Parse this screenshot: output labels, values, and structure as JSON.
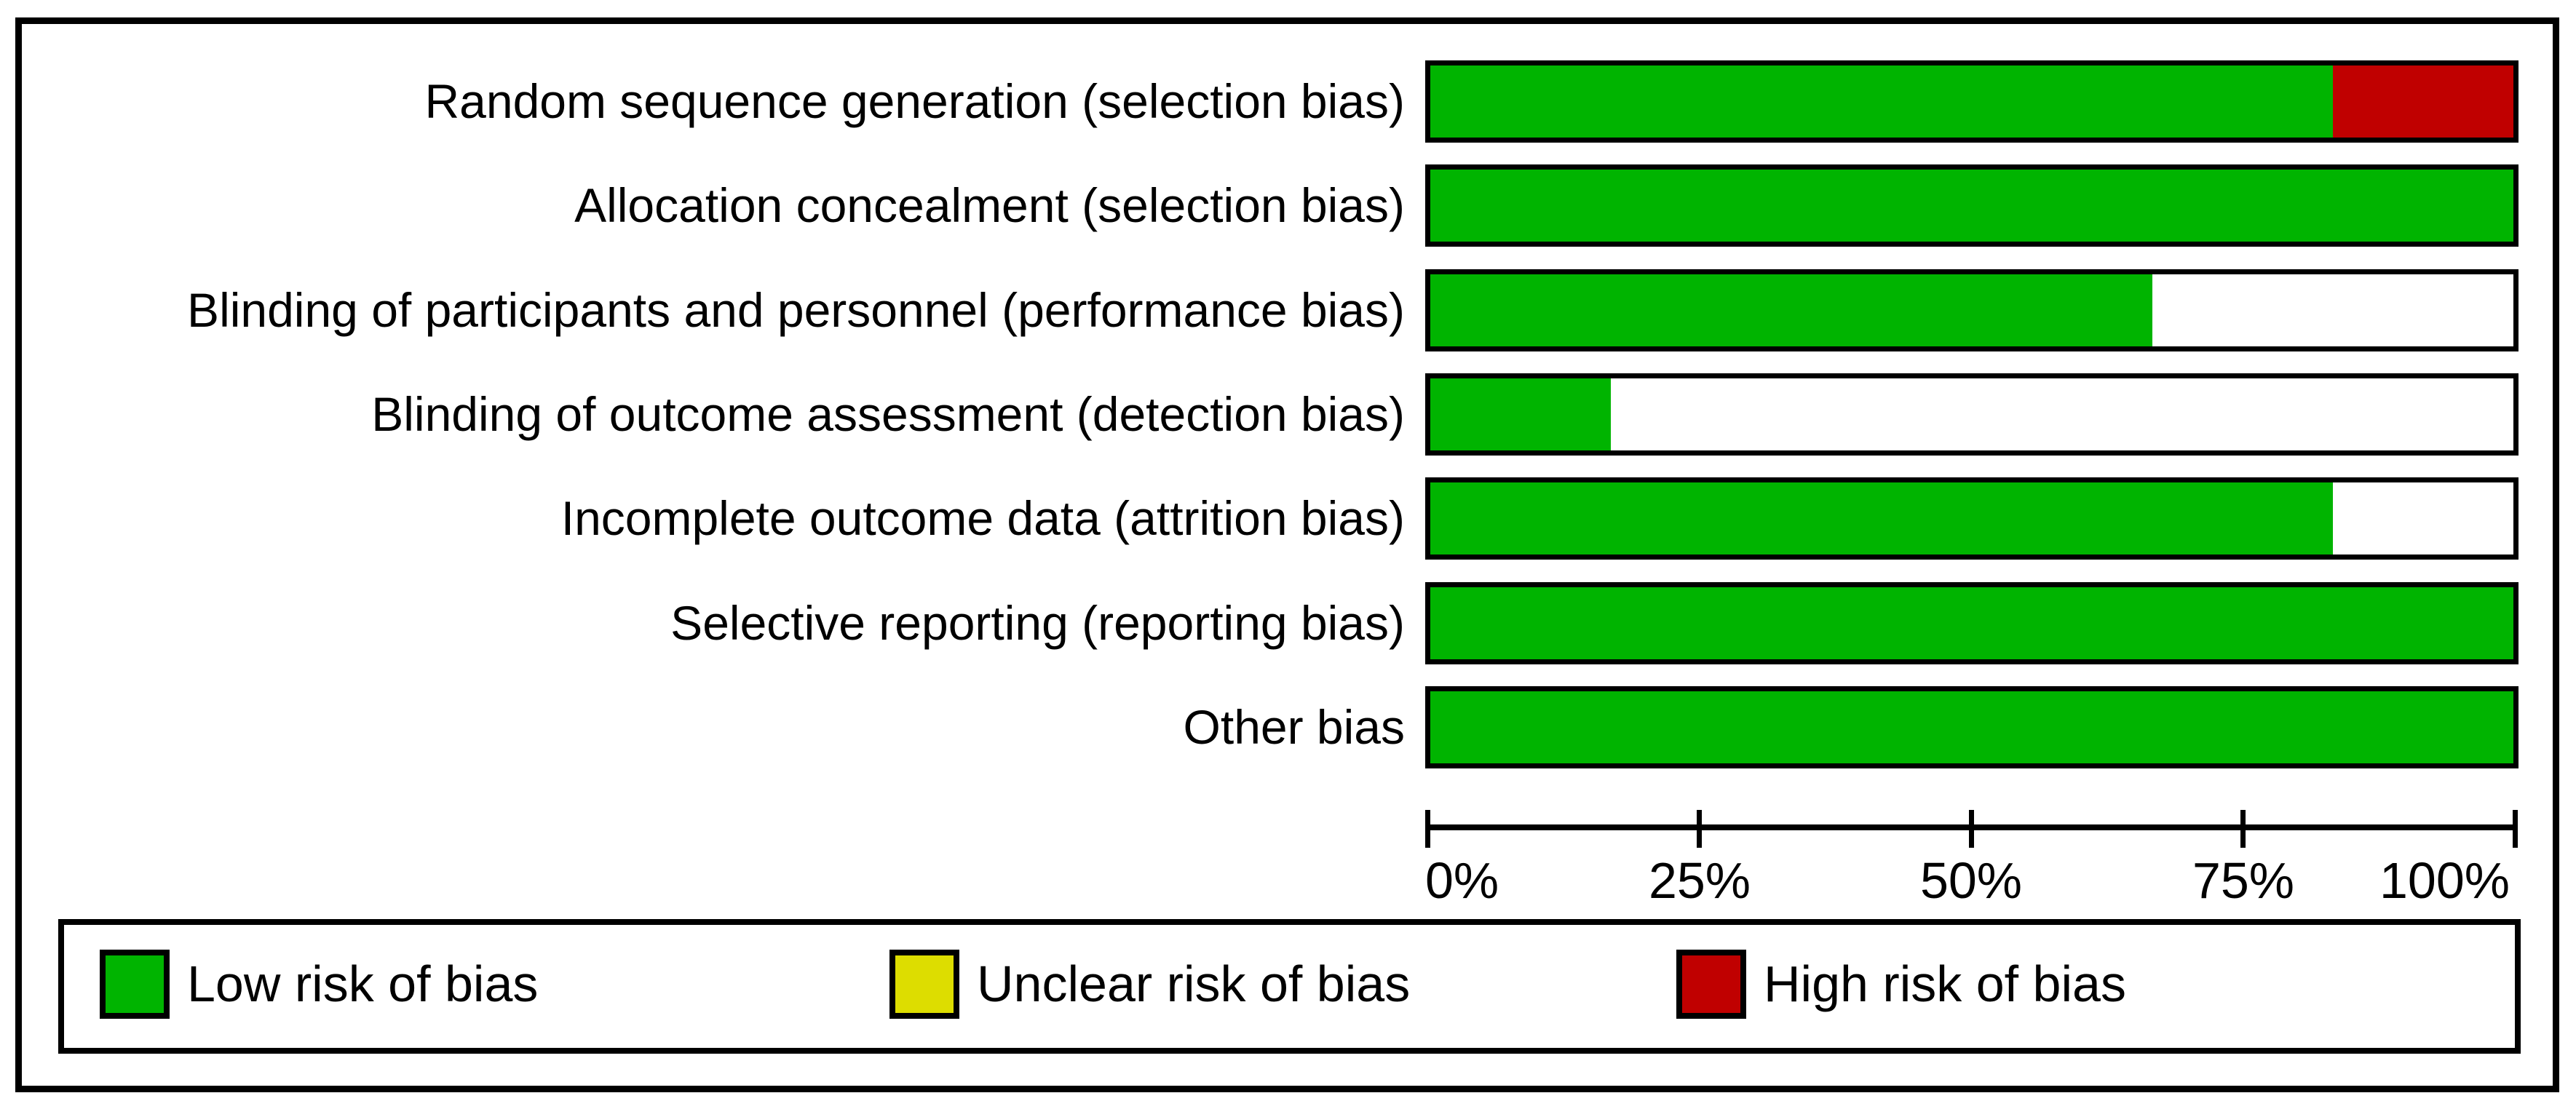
{
  "colors": {
    "low_risk": "#00b400",
    "unclear_risk": "#dddd00",
    "high_risk": "#c00000",
    "border": "#000000",
    "background": "#ffffff",
    "text": "#000000"
  },
  "chart_data": {
    "type": "bar",
    "orientation": "horizontal_stacked",
    "title": "",
    "xlabel": "",
    "ylabel": "",
    "unit": "percent",
    "xlim": [
      0,
      100
    ],
    "x_ticks": [
      "0%",
      "25%",
      "50%",
      "75%",
      "100%"
    ],
    "grid": false,
    "legend_position": "bottom",
    "categories": [
      "Random sequence generation (selection bias)",
      "Allocation concealment (selection bias)",
      "Blinding of participants and personnel (performance bias)",
      "Blinding of outcome assessment (detection bias)",
      "Incomplete outcome data (attrition bias)",
      "Selective reporting (reporting bias)",
      "Other bias"
    ],
    "series": [
      {
        "name": "Low risk of bias",
        "color": "#00b400",
        "values": [
          83.3,
          100,
          66.7,
          16.7,
          83.3,
          100,
          100
        ]
      },
      {
        "name": "Unclear risk of bias",
        "color": "#dddd00",
        "values": [
          0,
          0,
          0,
          0,
          0,
          0,
          0
        ]
      },
      {
        "name": "High risk of bias",
        "color": "#c00000",
        "values": [
          16.7,
          0,
          0,
          0,
          0,
          0,
          0
        ]
      }
    ],
    "rows": [
      {
        "label": "Random sequence generation (selection bias)",
        "low": 83.3,
        "unclear": 0,
        "high": 16.7
      },
      {
        "label": "Allocation concealment (selection bias)",
        "low": 100,
        "unclear": 0,
        "high": 0
      },
      {
        "label": "Blinding of participants and personnel (performance bias)",
        "low": 66.7,
        "unclear": 0,
        "high": 0
      },
      {
        "label": "Blinding of outcome assessment (detection bias)",
        "low": 16.7,
        "unclear": 0,
        "high": 0
      },
      {
        "label": "Incomplete outcome data (attrition bias)",
        "low": 83.3,
        "unclear": 0,
        "high": 0
      },
      {
        "label": "Selective reporting (reporting bias)",
        "low": 100,
        "unclear": 0,
        "high": 0
      },
      {
        "label": "Other bias",
        "low": 100,
        "unclear": 0,
        "high": 0
      }
    ]
  },
  "legend": {
    "items": [
      {
        "label": "Low risk of bias",
        "color": "#00b400"
      },
      {
        "label": "Unclear risk of bias",
        "color": "#dddd00"
      },
      {
        "label": "High risk of bias",
        "color": "#c00000"
      }
    ]
  }
}
